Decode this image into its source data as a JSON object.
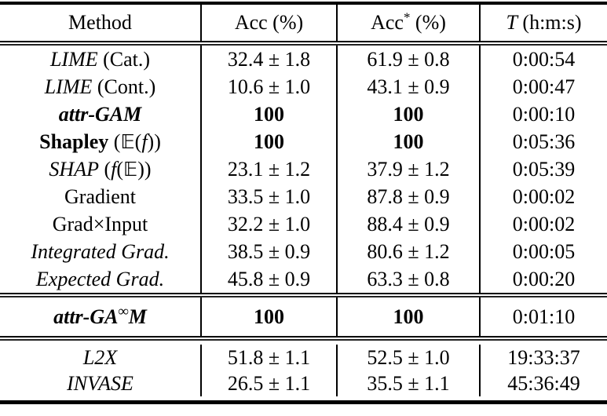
{
  "table": {
    "header": {
      "cells": [
        {
          "name": "col-header-method",
          "parts": [
            {
              "t": "Method"
            }
          ]
        },
        {
          "name": "col-header-acc",
          "parts": [
            {
              "t": "Acc (%)"
            }
          ]
        },
        {
          "name": "col-header-acc-star",
          "parts": [
            {
              "t": "Acc"
            },
            {
              "t": "*",
              "s": "sup"
            },
            {
              "t": " (%)"
            }
          ]
        },
        {
          "name": "col-header-time",
          "parts": [
            {
              "t": "T",
              "s": "i"
            },
            {
              "t": " (h:m:s)"
            }
          ]
        }
      ]
    },
    "sections": [
      {
        "rows": [
          {
            "method": [
              {
                "t": "LIME",
                "s": "i"
              },
              {
                "t": " (Cat.)"
              }
            ],
            "acc": "32.4 ± 1.8",
            "acc_star": "61.9 ± 0.8",
            "time": "0:00:54",
            "bold": false
          },
          {
            "method": [
              {
                "t": "LIME",
                "s": "i"
              },
              {
                "t": " (Cont.)"
              }
            ],
            "acc": "10.6 ± 1.0",
            "acc_star": "43.1 ± 0.9",
            "time": "0:00:47",
            "bold": false
          },
          {
            "method": [
              {
                "t": "attr-GAM",
                "s": "bi"
              }
            ],
            "acc": "100",
            "acc_star": "100",
            "time": "0:00:10",
            "bold": true
          },
          {
            "method": [
              {
                "t": "Shapley",
                "s": "b"
              },
              {
                "t": " ("
              },
              {
                "t": "𝔼",
                "s": "bb"
              },
              {
                "t": "("
              },
              {
                "t": "f",
                "s": "i"
              },
              {
                "t": "))"
              }
            ],
            "acc": "100",
            "acc_star": "100",
            "time": "0:05:36",
            "bold": true
          },
          {
            "method": [
              {
                "t": "SHAP",
                "s": "i"
              },
              {
                "t": " ("
              },
              {
                "t": "f",
                "s": "i"
              },
              {
                "t": "("
              },
              {
                "t": "𝔼",
                "s": "bb"
              },
              {
                "t": "))"
              }
            ],
            "acc": "23.1 ± 1.2",
            "acc_star": "37.9 ± 1.2",
            "time": "0:05:39",
            "bold": false
          },
          {
            "method": [
              {
                "t": "Gradient"
              }
            ],
            "acc": "33.5 ± 1.0",
            "acc_star": "87.8 ± 0.9",
            "time": "0:00:02",
            "bold": false
          },
          {
            "method": [
              {
                "t": "Grad×Input"
              }
            ],
            "acc": "32.2 ± 1.0",
            "acc_star": "88.4 ± 0.9",
            "time": "0:00:02",
            "bold": false
          },
          {
            "method": [
              {
                "t": "Integrated Grad.",
                "s": "i"
              }
            ],
            "acc": "38.5 ± 0.9",
            "acc_star": "80.6 ± 1.2",
            "time": "0:00:05",
            "bold": false
          },
          {
            "method": [
              {
                "t": "Expected Grad.",
                "s": "i"
              }
            ],
            "acc": "45.8 ± 0.9",
            "acc_star": "63.3 ± 0.8",
            "time": "0:00:20",
            "bold": false
          }
        ]
      },
      {
        "rows": [
          {
            "method": [
              {
                "t": "attr-GA",
                "s": "bi"
              },
              {
                "t": "∞",
                "s": "bsup"
              },
              {
                "t": "M",
                "s": "bi"
              }
            ],
            "acc": "100",
            "acc_star": "100",
            "time": "0:01:10",
            "bold": true
          }
        ]
      },
      {
        "rows": [
          {
            "method": [
              {
                "t": "L2X",
                "s": "i"
              }
            ],
            "acc": "51.8 ± 1.1",
            "acc_star": "52.5 ± 1.0",
            "time": "19:33:37",
            "bold": false
          },
          {
            "method": [
              {
                "t": "INVASE",
                "s": "i"
              }
            ],
            "acc": "26.5 ± 1.1",
            "acc_star": "35.5 ± 1.1",
            "time": "45:36:49",
            "bold": false
          }
        ]
      }
    ]
  }
}
